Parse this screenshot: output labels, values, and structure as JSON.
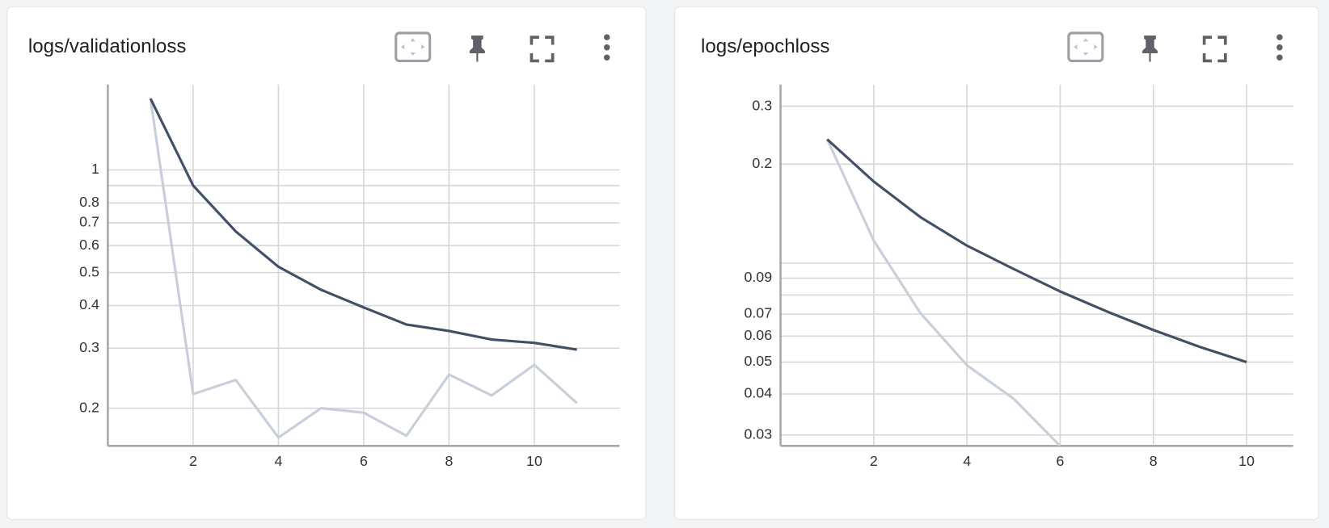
{
  "chart_data": [
    {
      "type": "line",
      "title": "logs/validationloss",
      "yscale": "log",
      "grid": true,
      "x": [
        1,
        2,
        3,
        4,
        5,
        6,
        7,
        8,
        9,
        10,
        11
      ],
      "xlim": [
        0,
        12
      ],
      "xticks": [
        2,
        4,
        6,
        8,
        10
      ],
      "ylim": [
        0.155,
        1.78
      ],
      "yticks": [
        0.2,
        0.3,
        0.4,
        0.5,
        0.6,
        0.7,
        0.8,
        1
      ],
      "minor_yticks": [
        0.9
      ],
      "series": [
        {
          "color": "#c8cfdb",
          "values": [
            1.62,
            0.22,
            0.242,
            0.164,
            0.2,
            0.194,
            0.166,
            0.251,
            0.218,
            0.268,
            0.207
          ]
        },
        {
          "color": "#425066",
          "values": [
            1.62,
            0.9,
            0.66,
            0.52,
            0.445,
            0.395,
            0.352,
            0.337,
            0.318,
            0.311,
            0.297
          ]
        }
      ]
    },
    {
      "type": "line",
      "title": "logs/epochloss",
      "yscale": "log",
      "grid": true,
      "x": [
        1,
        2,
        3,
        4,
        5,
        6,
        7,
        8,
        9,
        10
      ],
      "xlim": [
        0,
        11
      ],
      "xticks": [
        2,
        4,
        6,
        8,
        10
      ],
      "ylim": [
        0.0278,
        0.349
      ],
      "yticks": [
        0.03,
        0.04,
        0.05,
        0.06,
        0.07,
        0.09,
        0.2,
        0.3
      ],
      "minor_yticks": [
        0.08,
        0.1
      ],
      "series": [
        {
          "color": "#c8cfdb",
          "values": [
            0.238,
            0.117,
            0.0705,
            0.0489,
            0.0387,
            0.0278,
            null,
            null,
            null,
            null
          ]
        },
        {
          "color": "#425066",
          "values": [
            0.238,
            0.177,
            0.138,
            0.113,
            0.096,
            0.082,
            0.0713,
            0.0626,
            0.0556,
            0.05
          ]
        }
      ]
    }
  ]
}
